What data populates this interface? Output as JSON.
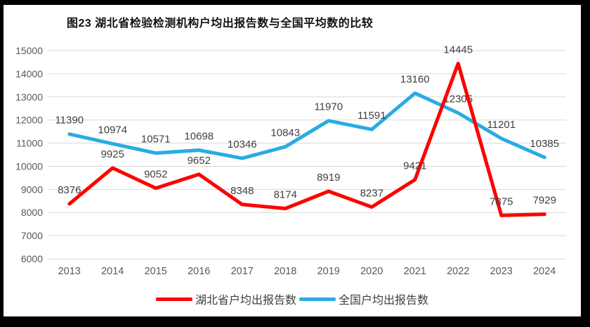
{
  "chart_data": {
    "type": "line",
    "title": "图23 湖北省检验检测机构户均出报告数与全国平均数的比较",
    "categories": [
      "2013",
      "2014",
      "2015",
      "2016",
      "2017",
      "2018",
      "2019",
      "2020",
      "2021",
      "2022",
      "2023",
      "2024"
    ],
    "series": [
      {
        "name": "湖北省户均出报告数",
        "color": "#FF0000",
        "values": [
          8376,
          9925,
          9052,
          9652,
          8348,
          8174,
          8919,
          8237,
          9421,
          14445,
          7875,
          7929
        ]
      },
      {
        "name": "全国户均出报告数",
        "color": "#29ABE2",
        "values": [
          11390,
          10974,
          10571,
          10698,
          10346,
          10843,
          11970,
          11591,
          13160,
          12305,
          11201,
          10385
        ]
      }
    ],
    "ylim": [
      6000,
      15000
    ],
    "ytick_step": 1000,
    "xlabel": "",
    "ylabel": "",
    "grid": true,
    "data_labels": true,
    "legend_position": "bottom"
  },
  "colors": {
    "frame": "#000000",
    "background": "#FFFFFF",
    "gridline": "#D9D9D9",
    "tick_text": "#595959",
    "data_label_text": "#404040",
    "title_text": "#111111"
  }
}
